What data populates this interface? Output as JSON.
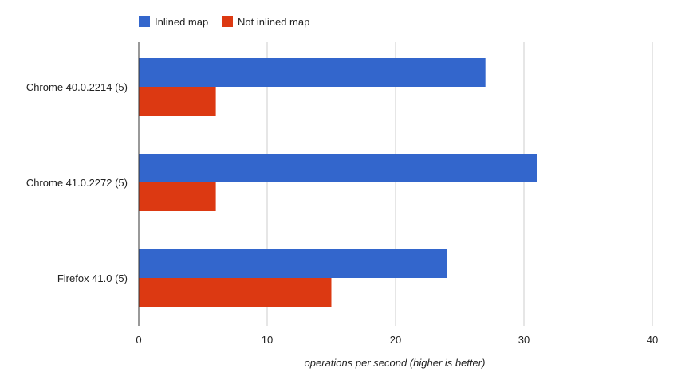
{
  "chart_data": {
    "type": "bar",
    "orientation": "horizontal",
    "categories": [
      "Chrome 40.0.2214 (5)",
      "Chrome 41.0.2272 (5)",
      "Firefox 41.0 (5)"
    ],
    "series": [
      {
        "name": "Inlined map",
        "color": "#3366cc",
        "values": [
          27,
          31,
          24
        ]
      },
      {
        "name": "Not inlined map",
        "color": "#dc3912",
        "values": [
          6,
          6,
          15
        ]
      }
    ],
    "xlabel": "operations per second (higher is better)",
    "ylabel": "",
    "xlim": [
      0,
      40
    ],
    "xticks": [
      0,
      10,
      20,
      30,
      40
    ],
    "grid": true,
    "legend_position": "top-left"
  }
}
